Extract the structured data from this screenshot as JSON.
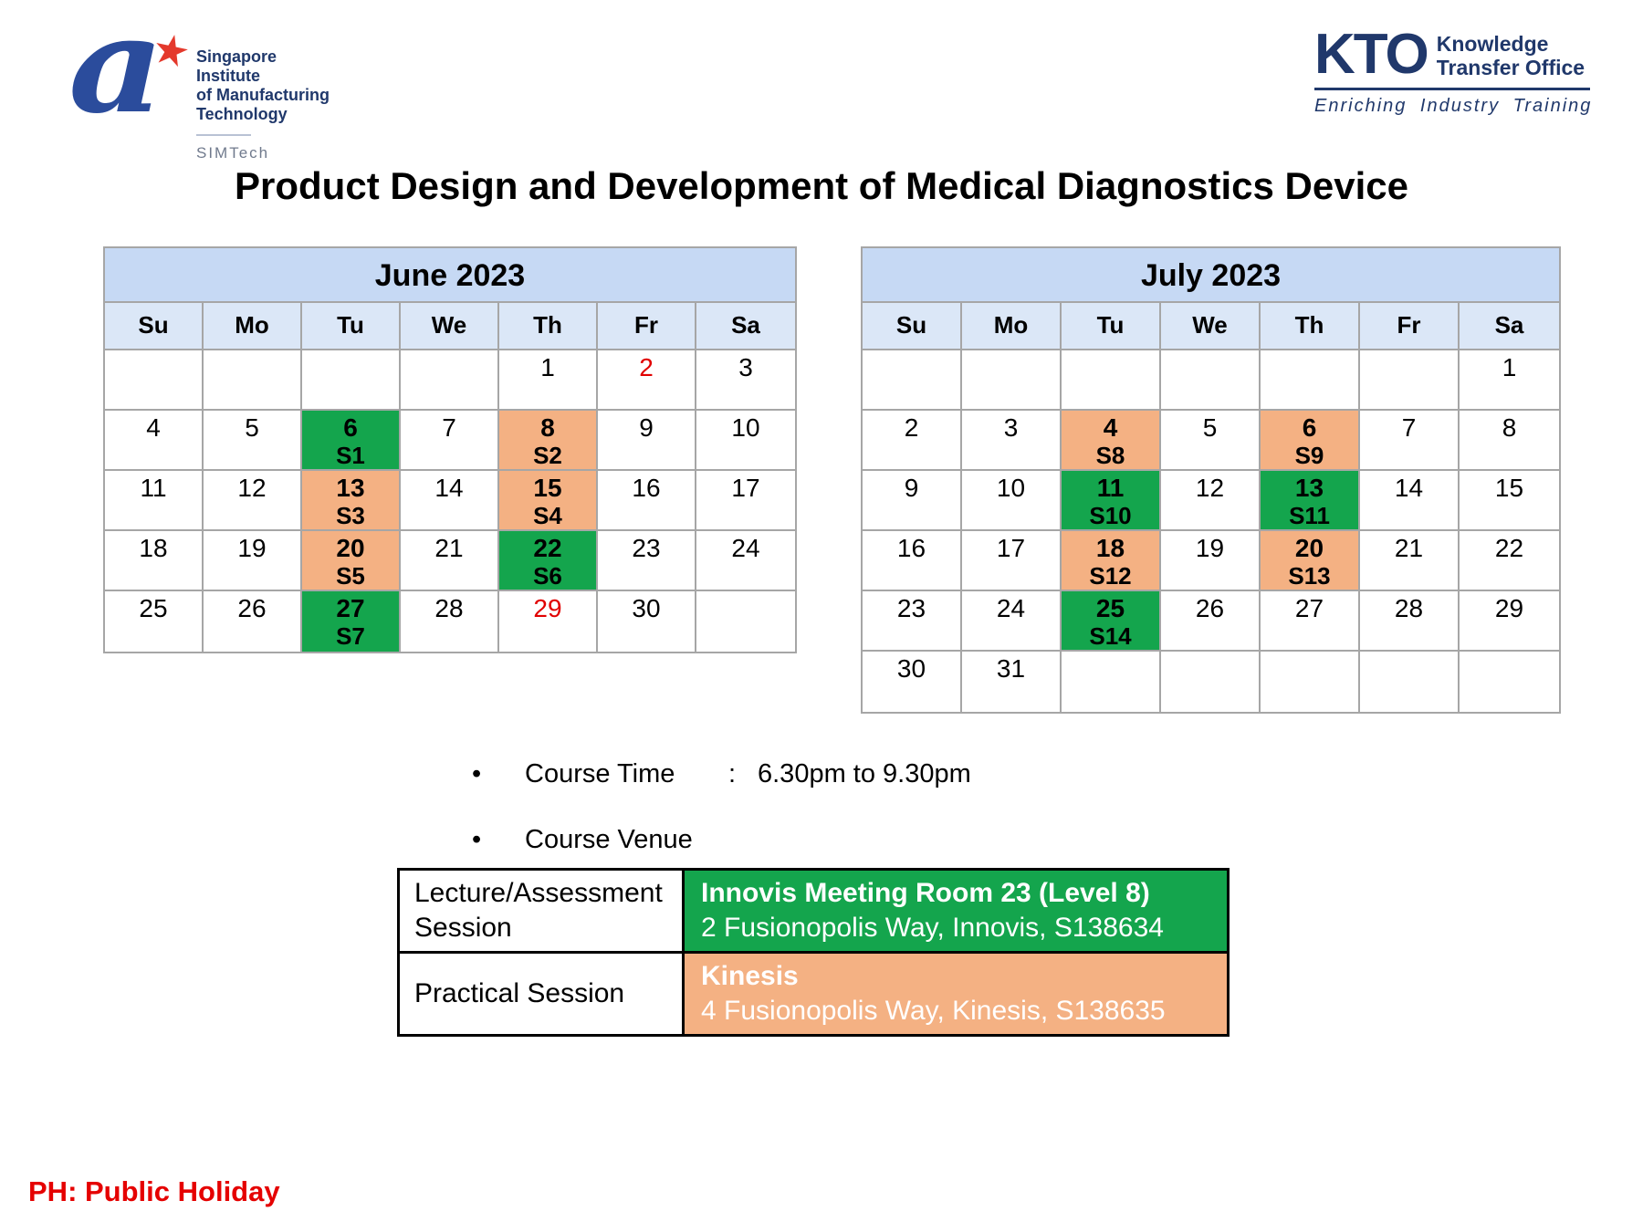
{
  "page_title": "Product Design and Development of Medical Diagnostics Device",
  "logos": {
    "simtech": {
      "mark_letter": "a",
      "star": "★",
      "name_lines": [
        "Singapore Institute",
        "of Manufacturing",
        "Technology"
      ],
      "abbreviation": "SIMTech"
    },
    "kto": {
      "acronym": "KTO",
      "name_lines": [
        "Knowledge",
        "Transfer Office"
      ],
      "tagline": "Enriching Industry Training"
    }
  },
  "calendars": [
    {
      "month": "June 2023",
      "weekdays": [
        "Su",
        "Mo",
        "Tu",
        "We",
        "Th",
        "Fr",
        "Sa"
      ],
      "rows": [
        [
          {
            "day": ""
          },
          {
            "day": ""
          },
          {
            "day": ""
          },
          {
            "day": ""
          },
          {
            "day": "1"
          },
          {
            "day": "2",
            "holiday": true
          },
          {
            "day": "3"
          }
        ],
        [
          {
            "day": "4"
          },
          {
            "day": "5"
          },
          {
            "day": "6",
            "session": "S1",
            "type": "lecture"
          },
          {
            "day": "7"
          },
          {
            "day": "8",
            "session": "S2",
            "type": "practical"
          },
          {
            "day": "9"
          },
          {
            "day": "10"
          }
        ],
        [
          {
            "day": "11"
          },
          {
            "day": "12"
          },
          {
            "day": "13",
            "session": "S3",
            "type": "practical"
          },
          {
            "day": "14"
          },
          {
            "day": "15",
            "session": "S4",
            "type": "practical"
          },
          {
            "day": "16"
          },
          {
            "day": "17"
          }
        ],
        [
          {
            "day": "18"
          },
          {
            "day": "19"
          },
          {
            "day": "20",
            "session": "S5",
            "type": "practical"
          },
          {
            "day": "21"
          },
          {
            "day": "22",
            "session": "S6",
            "type": "lecture"
          },
          {
            "day": "23"
          },
          {
            "day": "24"
          }
        ],
        [
          {
            "day": "25"
          },
          {
            "day": "26"
          },
          {
            "day": "27",
            "session": "S7",
            "type": "lecture"
          },
          {
            "day": "28"
          },
          {
            "day": "29",
            "holiday": true
          },
          {
            "day": "30"
          },
          {
            "day": ""
          }
        ]
      ]
    },
    {
      "month": "July 2023",
      "weekdays": [
        "Su",
        "Mo",
        "Tu",
        "We",
        "Th",
        "Fr",
        "Sa"
      ],
      "rows": [
        [
          {
            "day": ""
          },
          {
            "day": ""
          },
          {
            "day": ""
          },
          {
            "day": ""
          },
          {
            "day": ""
          },
          {
            "day": ""
          },
          {
            "day": "1"
          }
        ],
        [
          {
            "day": "2"
          },
          {
            "day": "3"
          },
          {
            "day": "4",
            "session": "S8",
            "type": "practical"
          },
          {
            "day": "5"
          },
          {
            "day": "6",
            "session": "S9",
            "type": "practical"
          },
          {
            "day": "7"
          },
          {
            "day": "8"
          }
        ],
        [
          {
            "day": "9"
          },
          {
            "day": "10"
          },
          {
            "day": "11",
            "session": "S10",
            "type": "lecture"
          },
          {
            "day": "12"
          },
          {
            "day": "13",
            "session": "S11",
            "type": "lecture"
          },
          {
            "day": "14"
          },
          {
            "day": "15"
          }
        ],
        [
          {
            "day": "16"
          },
          {
            "day": "17"
          },
          {
            "day": "18",
            "session": "S12",
            "type": "practical"
          },
          {
            "day": "19"
          },
          {
            "day": "20",
            "session": "S13",
            "type": "practical"
          },
          {
            "day": "21"
          },
          {
            "day": "22"
          }
        ],
        [
          {
            "day": "23"
          },
          {
            "day": "24"
          },
          {
            "day": "25",
            "session": "S14",
            "type": "lecture"
          },
          {
            "day": "26"
          },
          {
            "day": "27"
          },
          {
            "day": "28"
          },
          {
            "day": "29"
          }
        ],
        [
          {
            "day": "30"
          },
          {
            "day": "31"
          },
          {
            "day": ""
          },
          {
            "day": ""
          },
          {
            "day": ""
          },
          {
            "day": ""
          },
          {
            "day": ""
          }
        ]
      ]
    }
  ],
  "course_info": {
    "bullet": "•",
    "time_label": "Course Time",
    "time_separator": ":",
    "time_value": "6.30pm to 9.30pm",
    "venue_label": "Course Venue"
  },
  "venue_table": {
    "rows": [
      {
        "session": "Lecture/Assessment Session",
        "venue_name": "Innovis Meeting Room 23 (Level 8)",
        "venue_address": "2 Fusionopolis Way, Innovis, S138634",
        "type": "lecture"
      },
      {
        "session": "Practical Session",
        "venue_name": "Kinesis",
        "venue_address": "4 Fusionopolis Way, Kinesis, S138635",
        "type": "practical"
      }
    ]
  },
  "footer_note": "PH: Public Holiday",
  "colors": {
    "lecture_green": "#14a54d",
    "practical_orange": "#f4b183",
    "holiday_red": "#e10000",
    "month_header_blue": "#c6d9f4",
    "weekday_row_blue": "#dbe7f7",
    "table_border_gray": "#a6a6a6",
    "logo_navy": "#20386b",
    "logo_blue": "#2b4c9c",
    "footer_red": "#e50000"
  }
}
